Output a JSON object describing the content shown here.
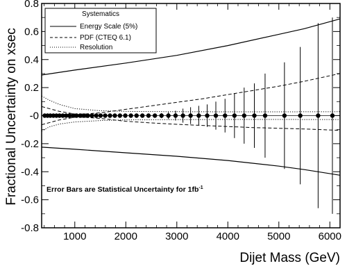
{
  "chart_data": {
    "type": "line",
    "xlabel": "Dijet Mass (GeV)",
    "ylabel": "Fractional Uncertainty on xsec",
    "xlim": [
      350,
      6200
    ],
    "ylim": [
      -0.8,
      0.8
    ],
    "x_ticks": [
      1000,
      2000,
      3000,
      4000,
      5000,
      6000
    ],
    "x_tick_labels": [
      "1000",
      "2000",
      "3000",
      "4000",
      "5000",
      "6000"
    ],
    "y_ticks": [
      -0.8,
      -0.6,
      -0.4,
      -0.2,
      0,
      0.2,
      0.4,
      0.6,
      0.8
    ],
    "y_tick_labels": [
      "-0.8",
      "-0.6",
      "-0.4",
      "-0.2",
      "-0",
      "0.2",
      "0.4",
      "0.6",
      "0.8"
    ],
    "legend": {
      "title": "Systematics",
      "position": "top-left",
      "entries": [
        {
          "label": "Energy Scale (5%)",
          "style": "solid"
        },
        {
          "label": "PDF (CTEQ 6.1)",
          "style": "dashed"
        },
        {
          "label": "Resolution",
          "style": "dotted"
        }
      ]
    },
    "annotation": {
      "text": "Error Bars are Statistical Uncertainty for 1fb",
      "superscript": "-1"
    },
    "series": [
      {
        "name": "Energy Scale (5%)",
        "style": "solid",
        "x": [
          350,
          1000,
          2000,
          3000,
          4000,
          5000,
          5500,
          6200
        ],
        "upper": [
          0.29,
          0.325,
          0.375,
          0.43,
          0.5,
          0.58,
          0.62,
          0.69
        ],
        "lower": [
          -0.225,
          -0.24,
          -0.265,
          -0.29,
          -0.32,
          -0.36,
          -0.385,
          -0.425
        ]
      },
      {
        "name": "PDF (CTEQ 6.1)",
        "style": "dashed",
        "x": [
          350,
          700,
          1000,
          1200,
          1500,
          2000,
          2500,
          3000,
          3500,
          4000,
          4500,
          5000,
          5500,
          6200
        ],
        "upper": [
          0.065,
          0.03,
          0.012,
          0.012,
          0.02,
          0.045,
          0.07,
          0.095,
          0.12,
          0.15,
          0.18,
          0.21,
          0.245,
          0.3
        ],
        "lower": [
          -0.065,
          -0.03,
          -0.012,
          -0.012,
          -0.02,
          -0.04,
          -0.052,
          -0.062,
          -0.07,
          -0.078,
          -0.085,
          -0.09,
          -0.095,
          -0.105
        ]
      },
      {
        "name": "Resolution",
        "style": "dotted",
        "x": [
          350,
          500,
          700,
          1000,
          1500,
          2000,
          3000,
          4000,
          5000,
          6200
        ],
        "upper": [
          0.14,
          0.11,
          0.08,
          0.05,
          0.035,
          0.03,
          0.028,
          0.027,
          0.027,
          0.028
        ],
        "lower": [
          -0.11,
          -0.08,
          -0.06,
          -0.045,
          -0.035,
          -0.03,
          -0.028,
          -0.027,
          -0.027,
          -0.028
        ]
      }
    ],
    "points": {
      "name": "Statistical uncertainty",
      "x": [
        410,
        465,
        520,
        580,
        640,
        700,
        765,
        830,
        895,
        965,
        1035,
        1105,
        1180,
        1255,
        1335,
        1420,
        1505,
        1595,
        1690,
        1785,
        1885,
        1990,
        2100,
        2210,
        2325,
        2445,
        2570,
        2700,
        2835,
        2975,
        3120,
        3270,
        3430,
        3595,
        3765,
        3945,
        4130,
        4320,
        4520,
        4730,
        5110,
        5420,
        5770,
        6050
      ],
      "y": [
        0,
        0,
        0,
        0,
        0,
        0,
        0,
        0,
        0,
        0,
        0,
        0,
        0,
        0,
        0,
        0,
        0,
        0,
        0,
        0,
        0,
        0,
        0,
        0,
        0,
        0,
        0,
        0,
        0,
        0,
        0,
        0,
        0,
        0,
        0,
        0,
        0,
        0,
        0,
        0,
        0,
        0,
        0,
        0
      ],
      "err": [
        0,
        0,
        0,
        0,
        0,
        0,
        0,
        0,
        0,
        0,
        0,
        0,
        0,
        0,
        0,
        0,
        0,
        0,
        0,
        0,
        0,
        0,
        0,
        0,
        0.005,
        0.008,
        0.012,
        0.018,
        0.025,
        0.035,
        0.05,
        0.06,
        0.07,
        0.08,
        0.1,
        0.12,
        0.16,
        0.2,
        0.23,
        0.3,
        0.38,
        0.49,
        0.66,
        0.7
      ]
    }
  }
}
